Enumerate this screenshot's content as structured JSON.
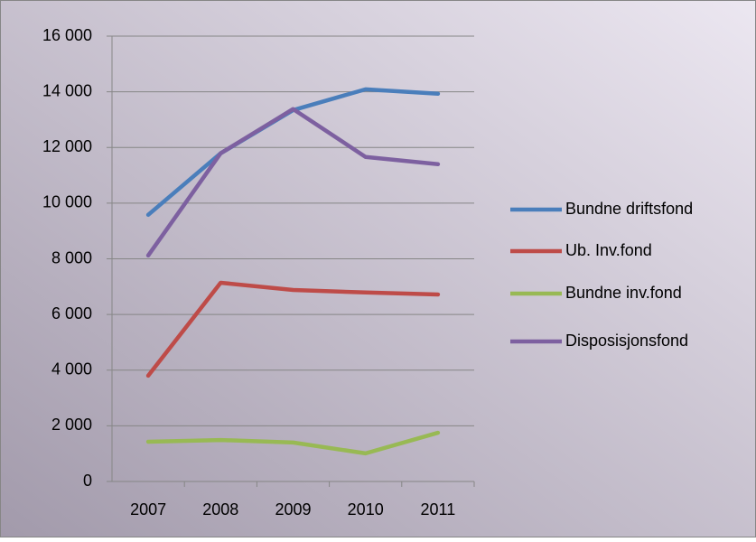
{
  "chart_data": {
    "type": "line",
    "categories": [
      "2007",
      "2008",
      "2009",
      "2010",
      "2011"
    ],
    "series": [
      {
        "name": "Bundne driftsfond",
        "color": "#4a7ebb",
        "values": [
          9580,
          11790,
          13340,
          14090,
          13930
        ]
      },
      {
        "name": "Ub. Inv.fond",
        "color": "#be4b48",
        "values": [
          3800,
          7140,
          6880,
          6790,
          6720
        ]
      },
      {
        "name": "Bundne inv.fond",
        "color": "#98b954",
        "values": [
          1430,
          1490,
          1400,
          1010,
          1750
        ]
      },
      {
        "name": "Disposisjonsfond",
        "color": "#7d60a0",
        "values": [
          8120,
          11790,
          13380,
          11660,
          11400
        ]
      }
    ],
    "ylim": [
      0,
      16000
    ],
    "yticks": [
      0,
      {
        "value": 2000,
        "label": "2 000"
      },
      {
        "value": 4000,
        "label": "4 000"
      },
      {
        "value": 6000,
        "label": "6 000"
      },
      {
        "value": 8000,
        "label": "8 000"
      },
      {
        "value": 10000,
        "label": "10 000"
      },
      {
        "value": 12000,
        "label": "12 000"
      },
      {
        "value": 14000,
        "label": "14 000"
      },
      {
        "value": 16000,
        "label": "16 000"
      }
    ],
    "grid": true,
    "legend": "right"
  }
}
